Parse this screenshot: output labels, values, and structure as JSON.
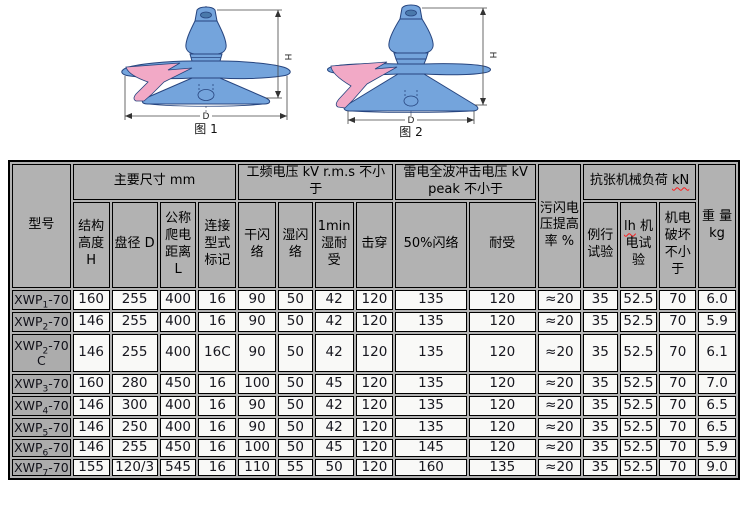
{
  "colors": {
    "insulator_blue": "#74a4dc",
    "insulator_outline": "#27457f",
    "section_pink": "#f2a9c6",
    "header_gray": "#b2b2b2",
    "cell_bg": "#f9f9f7",
    "grid": "#000000",
    "squiggle_red": "#ff1a1a"
  },
  "figures": {
    "fig1": {
      "caption": "图 1",
      "dim_height": "H",
      "dim_width": "D"
    },
    "fig2": {
      "caption": "图 2",
      "dim_height": "H",
      "dim_width": "D"
    }
  },
  "table": {
    "header": {
      "model": "型号",
      "main_dims": "主要尺寸 mm",
      "power_freq": "工频电压 kV r.m.s 不小于",
      "lightning": "雷电全波冲击电压 kV peak 不小于",
      "pollution": "污闪电压提高率 %",
      "tensile_text": "抗张机械负荷 ",
      "tensile_unit": "kN",
      "weight": "重 量 kg",
      "height": "结构高度H",
      "disc_dia": "盘径 D",
      "creepage": "公称爬电距离L",
      "coupling": "连接型式标记",
      "dry_flash": "干闪络",
      "wet_flash": "湿闪络",
      "wet_withstand": "1min湿耐受",
      "puncture": "击穿",
      "flash50": "50%闪络",
      "withstand": "耐受",
      "routine_test": "例行试验",
      "mech_pre": "lh",
      "mech_post": " 机电试验",
      "mech_fail": "机电破坏不小于"
    },
    "rows": [
      {
        "model": [
          "XWP",
          "1",
          "-70"
        ],
        "values": [
          "160",
          "255",
          "400",
          "16",
          "90",
          "50",
          "42",
          "120",
          "135",
          "120",
          "≈20",
          "35",
          "52.5",
          "70",
          "6.0"
        ]
      },
      {
        "model": [
          "XWP",
          "2",
          "-70"
        ],
        "values": [
          "146",
          "255",
          "400",
          "16",
          "90",
          "50",
          "42",
          "120",
          "135",
          "120",
          "≈20",
          "35",
          "52.5",
          "70",
          "5.9"
        ]
      },
      {
        "model": [
          "XWP",
          "2",
          "-70 C"
        ],
        "values": [
          "146",
          "255",
          "400",
          "16C",
          "90",
          "50",
          "42",
          "120",
          "135",
          "120",
          "≈20",
          "35",
          "52.5",
          "70",
          "6.1"
        ]
      },
      {
        "model": [
          "XWP",
          "3",
          "-70"
        ],
        "values": [
          "160",
          "280",
          "450",
          "16",
          "100",
          "50",
          "45",
          "120",
          "135",
          "120",
          "≈20",
          "35",
          "52.5",
          "70",
          "7.0"
        ]
      },
      {
        "model": [
          "XWP",
          "4",
          "-70"
        ],
        "values": [
          "146",
          "300",
          "400",
          "16",
          "90",
          "50",
          "42",
          "120",
          "135",
          "120",
          "≈20",
          "35",
          "52.5",
          "70",
          "6.5"
        ]
      },
      {
        "model": [
          "XWP",
          "5",
          "-70"
        ],
        "values": [
          "146",
          "250",
          "400",
          "16",
          "90",
          "50",
          "42",
          "120",
          "135",
          "120",
          "≈20",
          "35",
          "52.5",
          "70",
          "6.5"
        ]
      },
      {
        "model": [
          "XWP",
          "6",
          "-70"
        ],
        "values": [
          "146",
          "255",
          "450",
          "16",
          "100",
          "50",
          "45",
          "120",
          "145",
          "120",
          "≈20",
          "35",
          "52.5",
          "70",
          "5.9"
        ]
      },
      {
        "model": [
          "XWP",
          "7",
          "-70"
        ],
        "values": [
          "155",
          "120/3",
          "545",
          "16",
          "110",
          "55",
          "50",
          "120",
          "160",
          "135",
          "≈20",
          "35",
          "52.5",
          "70",
          "9.0"
        ]
      }
    ]
  }
}
